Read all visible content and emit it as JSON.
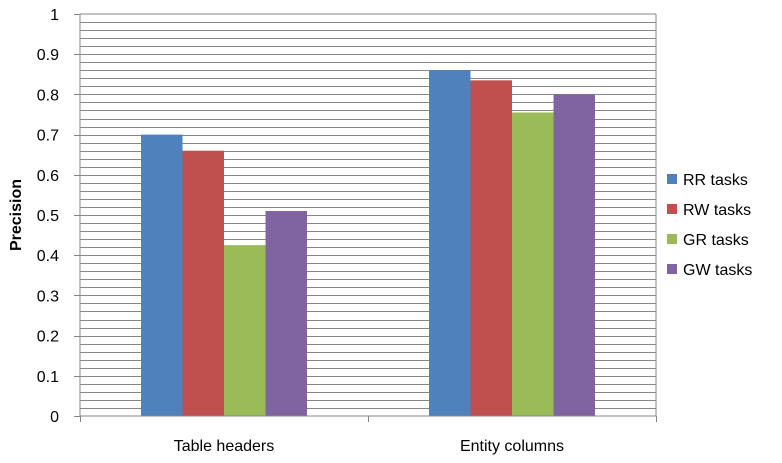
{
  "chart_data": {
    "type": "bar",
    "title": "",
    "xlabel": "",
    "ylabel": "Precision",
    "ylim": [
      0,
      1
    ],
    "y_ticks": [
      "0",
      "0.1",
      "0.2",
      "0.3",
      "0.4",
      "0.5",
      "0.6",
      "0.7",
      "0.8",
      "0.9",
      "1"
    ],
    "minor_grid_step": 0.02,
    "grid": true,
    "legend_position": "right",
    "categories": [
      "Table headers",
      "Entity columns"
    ],
    "series": [
      {
        "name": "RR tasks",
        "color": "#4F81BD",
        "values": [
          0.7,
          0.86
        ]
      },
      {
        "name": "RW tasks",
        "color": "#C0504D",
        "values": [
          0.66,
          0.835
        ]
      },
      {
        "name": "GR tasks",
        "color": "#9BBB59",
        "values": [
          0.425,
          0.755
        ]
      },
      {
        "name": "GW tasks",
        "color": "#8064A2",
        "values": [
          0.51,
          0.8
        ]
      }
    ]
  }
}
